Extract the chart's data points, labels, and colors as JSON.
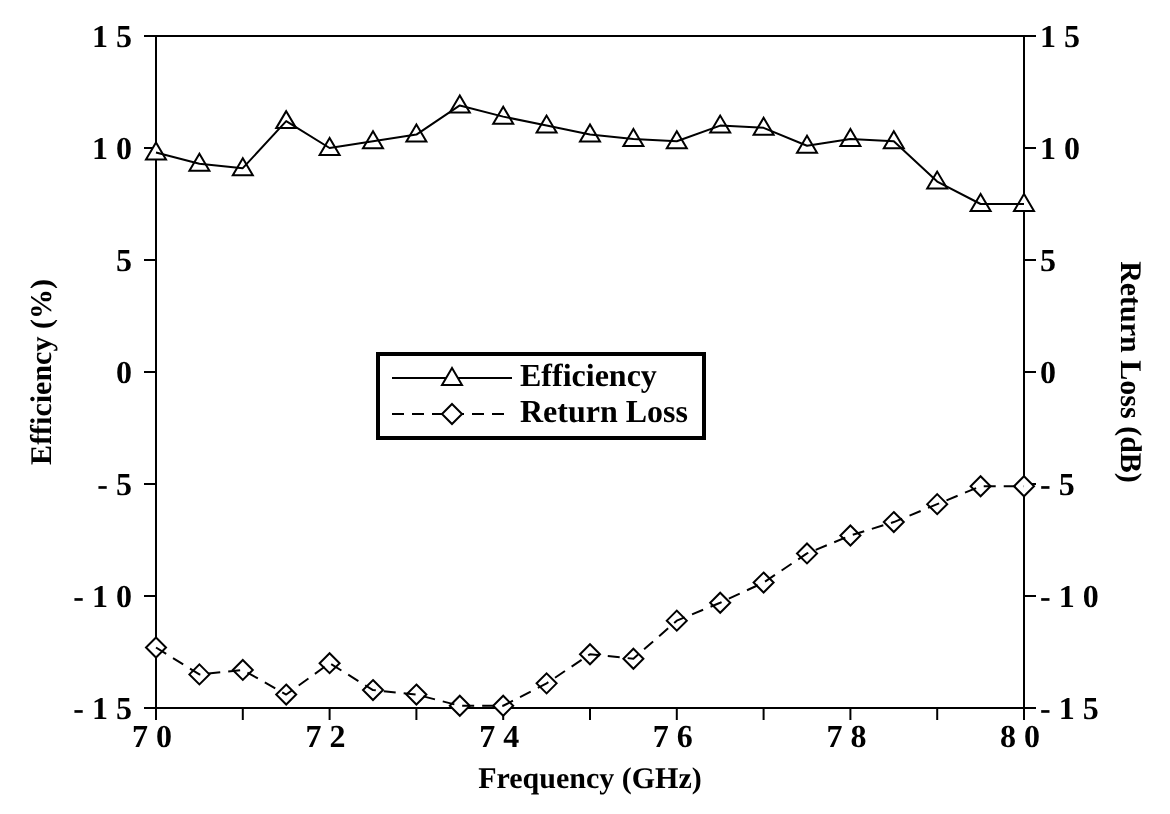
{
  "chart_data": {
    "type": "line",
    "xlabel": "Frequency (GHz)",
    "ylabel": "Efficiency (%)",
    "y2label": "Return Loss (dB)",
    "x": [
      70,
      70.5,
      71,
      71.5,
      72,
      72.5,
      73,
      73.5,
      74,
      74.5,
      75,
      75.5,
      76,
      76.5,
      77,
      77.5,
      78,
      78.5,
      79,
      79.5,
      80
    ],
    "series": [
      {
        "name": "Efficiency",
        "color": "#000000",
        "marker": "triangle",
        "line_style": "solid",
        "values": [
          9.8,
          9.3,
          9.1,
          11.2,
          10.0,
          10.3,
          10.6,
          11.9,
          11.4,
          11.0,
          10.6,
          10.4,
          10.3,
          11.0,
          10.9,
          10.1,
          10.4,
          10.3,
          8.5,
          7.5,
          7.5
        ]
      },
      {
        "name": "Return Loss",
        "color": "#000000",
        "marker": "diamond",
        "line_style": "dashed",
        "values": [
          -12.3,
          -13.5,
          -13.3,
          -14.4,
          -13.0,
          -14.2,
          -14.4,
          -14.9,
          -14.9,
          -13.9,
          -12.6,
          -12.8,
          -11.1,
          -10.3,
          -9.4,
          -8.1,
          -7.3,
          -6.7,
          -5.9,
          -5.1,
          -5.1
        ]
      }
    ],
    "xlim": [
      70,
      80
    ],
    "xticks": [
      70,
      {
        "value": 71,
        "label": null
      },
      72,
      {
        "value": 73,
        "label": null
      },
      74,
      {
        "value": 75,
        "label": null
      },
      76,
      {
        "value": 77,
        "label": null
      },
      78,
      {
        "value": 79,
        "label": null
      },
      80
    ],
    "ylim": [
      -15,
      15
    ],
    "yticks": [
      -15,
      -10,
      -5,
      0,
      5,
      10,
      15
    ],
    "y2lim": [
      -15,
      15
    ],
    "y2ticks": [
      -15,
      -10,
      -5,
      0,
      5,
      10,
      15
    ],
    "grid": false,
    "legend": "center"
  }
}
